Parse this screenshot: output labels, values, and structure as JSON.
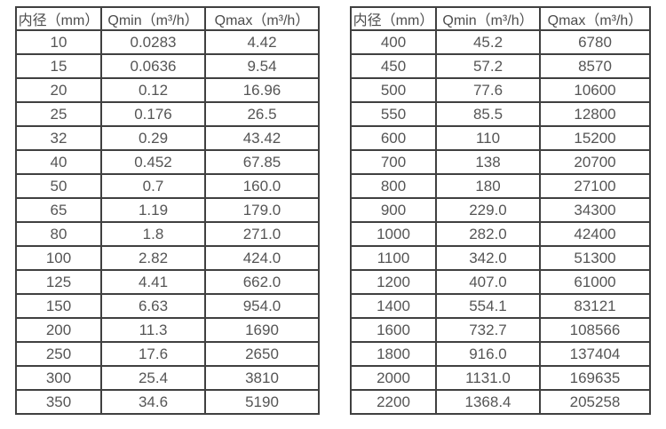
{
  "page": {
    "background_color": "#ffffff",
    "border_color": "#404040",
    "text_color": "#555555"
  },
  "tables": [
    {
      "name": "flow-spec-small-diameters",
      "headers": [
        "内径（mm）",
        "Qmin（m³/h）",
        "Qmax（m³/h）"
      ],
      "rows": [
        [
          "10",
          "0.0283",
          "4.42"
        ],
        [
          "15",
          "0.0636",
          "9.54"
        ],
        [
          "20",
          "0.12",
          "16.96"
        ],
        [
          "25",
          "0.176",
          "26.5"
        ],
        [
          "32",
          "0.29",
          "43.42"
        ],
        [
          "40",
          "0.452",
          "67.85"
        ],
        [
          "50",
          "0.7",
          "160.0"
        ],
        [
          "65",
          "1.19",
          "179.0"
        ],
        [
          "80",
          "1.8",
          "271.0"
        ],
        [
          "100",
          "2.82",
          "424.0"
        ],
        [
          "125",
          "4.41",
          "662.0"
        ],
        [
          "150",
          "6.63",
          "954.0"
        ],
        [
          "200",
          "11.3",
          "1690"
        ],
        [
          "250",
          "17.6",
          "2650"
        ],
        [
          "300",
          "25.4",
          "3810"
        ],
        [
          "350",
          "34.6",
          "5190"
        ]
      ]
    },
    {
      "name": "flow-spec-large-diameters",
      "headers": [
        "内径（mm）",
        "Qmin（m³/h）",
        "Qmax（m³/h）"
      ],
      "rows": [
        [
          "400",
          "45.2",
          "6780"
        ],
        [
          "450",
          "57.2",
          "8570"
        ],
        [
          "500",
          "77.6",
          "10600"
        ],
        [
          "550",
          "85.5",
          "12800"
        ],
        [
          "600",
          "110",
          "15200"
        ],
        [
          "700",
          "138",
          "20700"
        ],
        [
          "800",
          "180",
          "27100"
        ],
        [
          "900",
          "229.0",
          "34300"
        ],
        [
          "1000",
          "282.0",
          "42400"
        ],
        [
          "1100",
          "342.0",
          "51300"
        ],
        [
          "1200",
          "407.0",
          "61000"
        ],
        [
          "1400",
          "554.1",
          "83121"
        ],
        [
          "1600",
          "732.7",
          "108566"
        ],
        [
          "1800",
          "916.0",
          "137404"
        ],
        [
          "2000",
          "1131.0",
          "169635"
        ],
        [
          "2200",
          "1368.4",
          "205258"
        ]
      ]
    }
  ]
}
